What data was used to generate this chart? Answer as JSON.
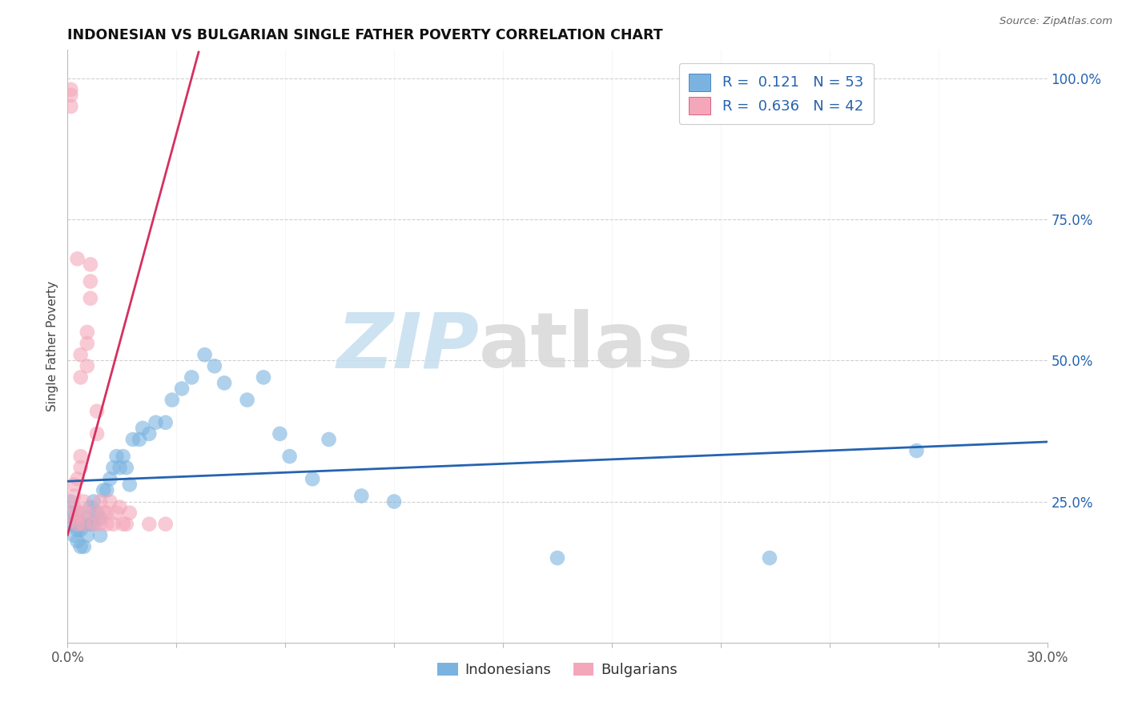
{
  "title": "INDONESIAN VS BULGARIAN SINGLE FATHER POVERTY CORRELATION CHART",
  "source": "Source: ZipAtlas.com",
  "ylabel": "Single Father Poverty",
  "x_min": 0.0,
  "x_max": 0.3,
  "y_min": 0.0,
  "y_max": 1.05,
  "y_ticks": [
    0.25,
    0.5,
    0.75,
    1.0
  ],
  "y_tick_labels": [
    "25.0%",
    "50.0%",
    "75.0%",
    "100.0%"
  ],
  "x_tick_labels": [
    "0.0%",
    "30.0%"
  ],
  "indonesian_R": 0.121,
  "indonesian_N": 53,
  "bulgarian_R": 0.636,
  "bulgarian_N": 42,
  "indonesian_color": "#7ab3e0",
  "bulgarian_color": "#f4a7b9",
  "indonesian_line_color": "#2563b0",
  "bulgarian_line_color": "#d63060",
  "legend_text_color": "#2563b0",
  "indonesian_x": [
    0.001,
    0.001,
    0.001,
    0.002,
    0.002,
    0.003,
    0.003,
    0.003,
    0.004,
    0.004,
    0.005,
    0.005,
    0.006,
    0.006,
    0.007,
    0.007,
    0.008,
    0.008,
    0.009,
    0.01,
    0.01,
    0.011,
    0.012,
    0.013,
    0.014,
    0.015,
    0.016,
    0.017,
    0.018,
    0.019,
    0.02,
    0.022,
    0.023,
    0.025,
    0.027,
    0.03,
    0.032,
    0.035,
    0.038,
    0.042,
    0.045,
    0.048,
    0.055,
    0.06,
    0.065,
    0.068,
    0.075,
    0.08,
    0.09,
    0.1,
    0.15,
    0.215,
    0.26
  ],
  "indonesian_y": [
    0.21,
    0.23,
    0.25,
    0.19,
    0.22,
    0.18,
    0.2,
    0.23,
    0.17,
    0.2,
    0.17,
    0.21,
    0.19,
    0.22,
    0.21,
    0.24,
    0.21,
    0.25,
    0.23,
    0.19,
    0.22,
    0.27,
    0.27,
    0.29,
    0.31,
    0.33,
    0.31,
    0.33,
    0.31,
    0.28,
    0.36,
    0.36,
    0.38,
    0.37,
    0.39,
    0.39,
    0.43,
    0.45,
    0.47,
    0.51,
    0.49,
    0.46,
    0.43,
    0.47,
    0.37,
    0.33,
    0.29,
    0.36,
    0.26,
    0.25,
    0.15,
    0.15,
    0.34
  ],
  "bulgarian_x": [
    0.001,
    0.001,
    0.001,
    0.002,
    0.002,
    0.002,
    0.002,
    0.003,
    0.003,
    0.003,
    0.003,
    0.004,
    0.004,
    0.004,
    0.004,
    0.005,
    0.005,
    0.005,
    0.006,
    0.006,
    0.006,
    0.007,
    0.007,
    0.007,
    0.008,
    0.008,
    0.009,
    0.009,
    0.01,
    0.01,
    0.011,
    0.012,
    0.012,
    0.013,
    0.014,
    0.015,
    0.016,
    0.017,
    0.018,
    0.019,
    0.025,
    0.03
  ],
  "bulgarian_y": [
    0.95,
    0.97,
    0.98,
    0.22,
    0.24,
    0.26,
    0.28,
    0.21,
    0.23,
    0.29,
    0.68,
    0.31,
    0.33,
    0.47,
    0.51,
    0.21,
    0.23,
    0.25,
    0.49,
    0.53,
    0.55,
    0.61,
    0.64,
    0.67,
    0.21,
    0.23,
    0.37,
    0.41,
    0.21,
    0.25,
    0.23,
    0.21,
    0.23,
    0.25,
    0.21,
    0.23,
    0.24,
    0.21,
    0.21,
    0.23,
    0.21,
    0.21
  ],
  "watermark_zip_color": "#c5dff0",
  "watermark_atlas_color": "#d8d8d8",
  "grid_color": "#d0d0d0",
  "spine_color": "#bbbbbb"
}
